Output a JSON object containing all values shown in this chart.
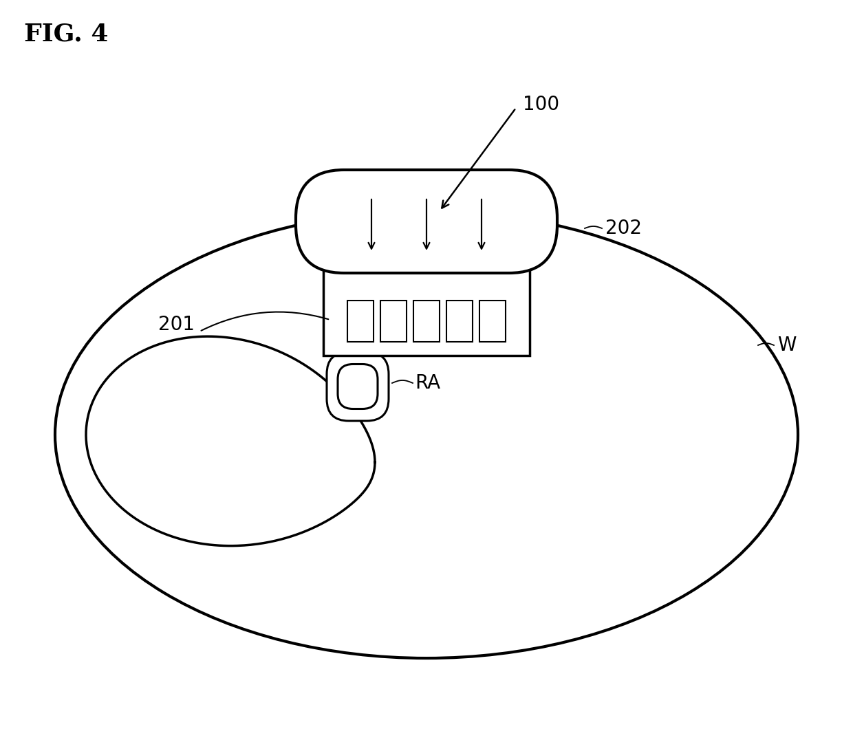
{
  "title": "FIG. 4",
  "bg_color": "#ffffff",
  "line_color": "#000000",
  "linewidth": 2.5,
  "thin_linewidth": 1.8,
  "label_100": "100",
  "label_201": "201",
  "label_202": "202",
  "label_W": "W",
  "label_RA": "RA",
  "title_fontsize": 26,
  "label_fontsize": 20,
  "fig_width": 12.4,
  "fig_height": 10.92,
  "dpi": 100
}
